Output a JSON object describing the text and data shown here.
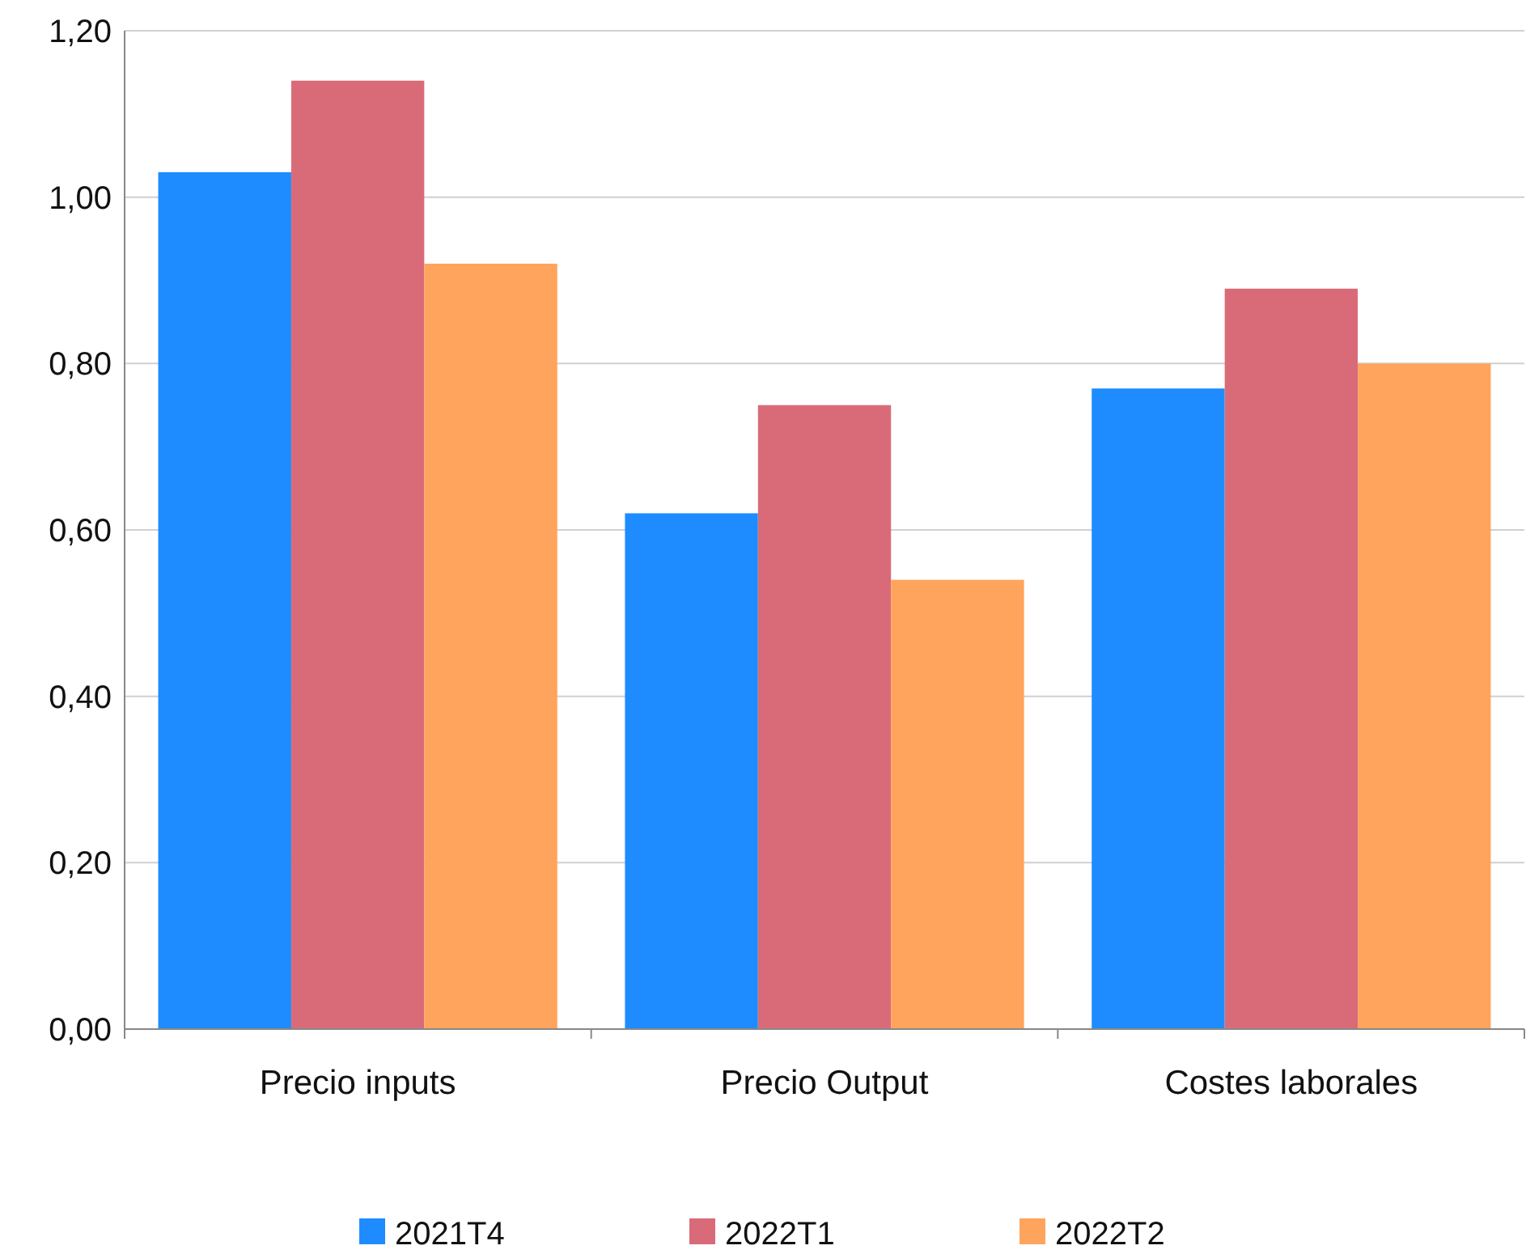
{
  "chart_data": {
    "type": "bar",
    "categories": [
      "Precio inputs",
      "Precio Output",
      "Costes laborales"
    ],
    "series": [
      {
        "name": "2021T4",
        "color": "#1e8cff",
        "values": [
          1.03,
          0.62,
          0.77
        ]
      },
      {
        "name": "2022T1",
        "color": "#d96b79",
        "values": [
          1.14,
          0.75,
          0.89
        ]
      },
      {
        "name": "2022T2",
        "color": "#ffa45c",
        "values": [
          0.92,
          0.54,
          0.8
        ]
      }
    ],
    "ylim": [
      0,
      1.2
    ],
    "yticks": [
      {
        "value": 0,
        "label": "0,00"
      },
      {
        "value": 0.2,
        "label": "0,20"
      },
      {
        "value": 0.4,
        "label": "0,40"
      },
      {
        "value": 0.6,
        "label": "0,60"
      },
      {
        "value": 0.8,
        "label": "0,80"
      },
      {
        "value": 1,
        "label": "1,00"
      },
      {
        "value": 1.2,
        "label": "1,20"
      }
    ],
    "grid": "y",
    "legend": "bottom"
  }
}
